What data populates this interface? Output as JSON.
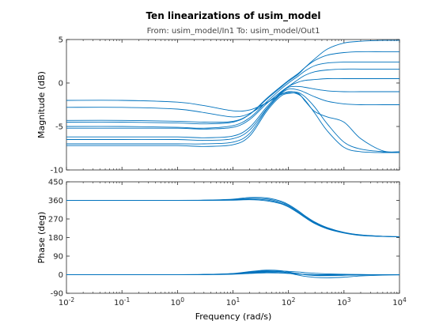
{
  "colors": {
    "series": "#0072BD",
    "axis": "#262626"
  },
  "chart_data": {
    "type": "line",
    "subtype": "bode",
    "title": "Ten linearizations of usim_model",
    "subtitle": "From: usim_model/In1  To: usim_model/Out1",
    "xlabel": "Frequency  (rad/s)",
    "xscale": "log",
    "xlim": [
      0.01,
      10000
    ],
    "x_ticks": [
      "10-2",
      "10-1",
      "100",
      "101",
      "102",
      "103",
      "104"
    ],
    "grid": false,
    "panels": [
      {
        "id": "magnitude",
        "ylabel": "Magnitude (dB)",
        "ylim": [
          -10,
          5
        ],
        "y_ticks": [
          "5",
          "0",
          "-5",
          "-10"
        ],
        "x": [
          0.01,
          0.1,
          1,
          3,
          10,
          20,
          40,
          70,
          100,
          150,
          200,
          300,
          500,
          1000,
          2000,
          5000,
          10000
        ],
        "series": [
          {
            "values": [
              -2.0,
              -2.0,
              -2.2,
              -2.6,
              -3.2,
              -3.1,
              -2.3,
              -1.4,
              -1.0,
              -1.1,
              -1.6,
              -2.8,
              -4.7,
              -6.8,
              -7.6,
              -7.9,
              -8.0
            ]
          },
          {
            "values": [
              -2.8,
              -2.8,
              -3.0,
              -3.4,
              -3.9,
              -3.5,
              -2.3,
              -1.4,
              -1.1,
              -1.3,
              -2.0,
              -3.5,
              -5.5,
              -7.4,
              -7.9,
              -8.0,
              -8.0
            ]
          },
          {
            "values": [
              -4.3,
              -4.3,
              -4.4,
              -4.5,
              -4.4,
              -3.6,
              -1.9,
              -0.6,
              0.2,
              1.0,
              1.8,
              2.8,
              3.9,
              4.6,
              4.8,
              4.9,
              4.9
            ]
          },
          {
            "values": [
              -4.5,
              -4.5,
              -4.6,
              -4.7,
              -4.5,
              -3.6,
              -1.8,
              -0.5,
              0.3,
              1.1,
              1.8,
              2.6,
              3.2,
              3.5,
              3.6,
              3.6,
              3.6
            ]
          },
          {
            "values": [
              -5.0,
              -5.0,
              -5.1,
              -5.2,
              -4.9,
              -4.0,
              -2.2,
              -0.8,
              0.0,
              0.8,
              1.4,
              2.0,
              2.3,
              2.4,
              2.4,
              2.4,
              2.4
            ]
          },
          {
            "values": [
              -5.2,
              -5.2,
              -5.2,
              -5.3,
              -5.1,
              -4.2,
              -2.4,
              -1.1,
              -0.4,
              0.4,
              0.9,
              1.3,
              1.5,
              1.6,
              1.6,
              1.6,
              1.6
            ]
          },
          {
            "values": [
              -6.2,
              -6.2,
              -6.2,
              -6.3,
              -6.1,
              -5.1,
              -2.8,
              -1.2,
              -0.4,
              0.1,
              0.3,
              0.4,
              0.5,
              0.5,
              0.5,
              0.5,
              0.5
            ]
          },
          {
            "values": [
              -6.5,
              -6.5,
              -6.5,
              -6.6,
              -6.4,
              -5.4,
              -3.0,
              -1.3,
              -0.5,
              -0.4,
              -0.5,
              -0.7,
              -0.9,
              -1.0,
              -1.0,
              -1.0,
              -1.0
            ]
          },
          {
            "values": [
              -7.0,
              -7.0,
              -7.0,
              -7.0,
              -6.8,
              -5.8,
              -3.1,
              -1.4,
              -0.7,
              -0.8,
              -1.1,
              -1.6,
              -2.1,
              -2.4,
              -2.5,
              -2.5,
              -2.5
            ]
          },
          {
            "values": [
              -7.2,
              -7.2,
              -7.2,
              -7.3,
              -7.1,
              -6.1,
              -3.3,
              -1.6,
              -1.2,
              -1.2,
              -2.1,
              -3.3,
              -3.9,
              -4.5,
              -6.4,
              -7.8,
              -7.9
            ]
          }
        ]
      },
      {
        "id": "phase",
        "ylabel": "Phase (deg)",
        "ylim": [
          -90,
          450
        ],
        "y_ticks": [
          "450",
          "360",
          "270",
          "180",
          "90",
          "0",
          "-90"
        ],
        "x": [
          0.01,
          0.1,
          1,
          3,
          10,
          20,
          40,
          70,
          100,
          150,
          200,
          300,
          500,
          1000,
          2000,
          5000,
          10000
        ],
        "series": [
          {
            "values": [
              360,
              360,
              360,
              361,
              366,
              374,
              372,
              358,
              340,
              310,
              285,
              255,
              228,
              205,
              193,
              186,
              184
            ]
          },
          {
            "values": [
              360,
              360,
              360,
              361,
              364,
              370,
              367,
              353,
              336,
              306,
              282,
              252,
              226,
              204,
              192,
              186,
              184
            ]
          },
          {
            "values": [
              360,
              360,
              360,
              360,
              362,
              366,
              362,
              348,
              332,
              302,
              278,
              249,
              224,
              203,
              191,
              186,
              184
            ]
          },
          {
            "values": [
              360,
              360,
              360,
              360,
              361,
              363,
              358,
              345,
              328,
              299,
              276,
              247,
              222,
              202,
              190,
              185,
              184
            ]
          },
          {
            "values": [
              0,
              0,
              0,
              1,
              6,
              15,
              22,
              20,
              13,
              5,
              0,
              -4,
              -5,
              -3,
              -1,
              0,
              0
            ]
          },
          {
            "values": [
              0,
              0,
              0,
              1,
              5,
              13,
              19,
              16,
              8,
              -2,
              -8,
              -13,
              -15,
              -12,
              -6,
              -2,
              -1
            ]
          },
          {
            "values": [
              0,
              0,
              0,
              1,
              4,
              11,
              17,
              18,
              16,
              13,
              10,
              7,
              4,
              2,
              1,
              0,
              0
            ]
          },
          {
            "values": [
              0,
              0,
              0,
              1,
              4,
              10,
              15,
              14,
              10,
              5,
              1,
              -2,
              -3,
              -2,
              -1,
              0,
              0
            ]
          },
          {
            "values": [
              0,
              0,
              0,
              0,
              3,
              8,
              12,
              10,
              7,
              3,
              1,
              0,
              0,
              0,
              0,
              0,
              0
            ]
          },
          {
            "values": [
              0,
              0,
              0,
              0,
              2,
              6,
              9,
              8,
              6,
              3,
              1,
              0,
              0,
              0,
              0,
              0,
              0
            ]
          }
        ]
      }
    ]
  }
}
